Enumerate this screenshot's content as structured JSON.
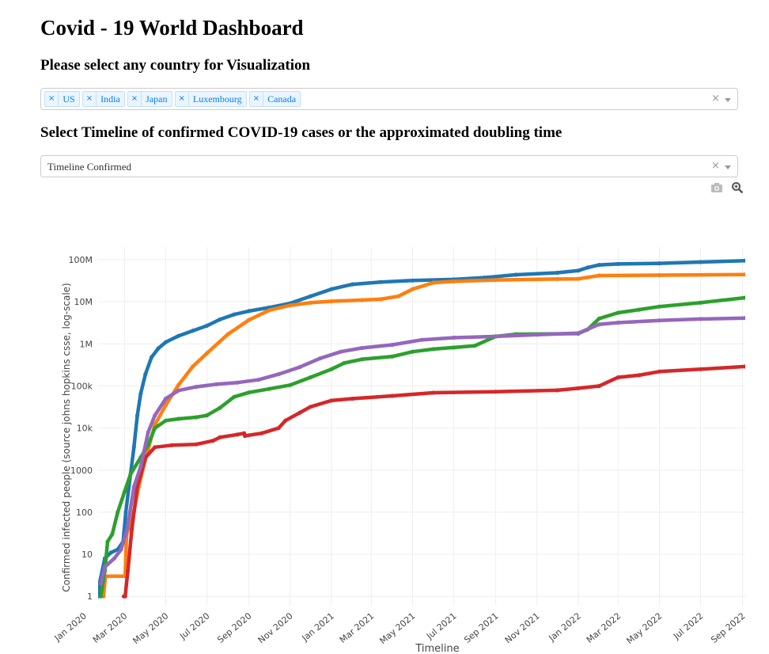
{
  "page": {
    "title": "Covid - 19 World Dashboard",
    "country_prompt": "Please select any country for Visualization",
    "timeline_prompt": "Select Timeline of confirmed COVID-19 cases or the approximated doubling time"
  },
  "country_dropdown": {
    "selected": [
      "US",
      "India",
      "Japan",
      "Luxembourg",
      "Canada"
    ],
    "remove_glyph": "×",
    "clear_glyph": "×"
  },
  "timeline_dropdown": {
    "value": "Timeline Confirmed",
    "clear_glyph": "×"
  },
  "modebar": {
    "icons": [
      "camera-icon",
      "zoom-icon"
    ]
  },
  "chart_data": {
    "type": "line",
    "xlabel": "Timeline",
    "ylabel": "Confirmed infected people (source johns hopkins csse, log-scale)",
    "y_scale": "log",
    "ylim": [
      0.6,
      200000000
    ],
    "xlim": [
      "2020-01-22",
      "2022-09-05"
    ],
    "x_ticks": [
      "Jan 2020",
      "Mar 2020",
      "May 2020",
      "Jul 2020",
      "Sep 2020",
      "Nov 2020",
      "Jan 2021",
      "Mar 2021",
      "May 2021",
      "Jul 2021",
      "Sep 2021",
      "Nov 2021",
      "Jan 2022",
      "Mar 2022",
      "May 2022",
      "Jul 2022",
      "Sep 2022"
    ],
    "y_ticks": [
      "1",
      "10",
      "100",
      "1000",
      "10k",
      "100k",
      "1M",
      "10M",
      "100M"
    ],
    "grid": true,
    "legend": "none",
    "colors": [
      "#1f77b4",
      "#ff7f0e",
      "#2ca02c",
      "#d62728",
      "#9467bd"
    ],
    "series": [
      {
        "points": [
          [
            "2020-01-22",
            1
          ],
          [
            "2020-01-24",
            2
          ],
          [
            "2020-02-01",
            8
          ],
          [
            "2020-02-10",
            11
          ],
          [
            "2020-02-20",
            13
          ],
          [
            "2020-02-28",
            20
          ],
          [
            "2020-03-03",
            100
          ],
          [
            "2020-03-10",
            800
          ],
          [
            "2020-03-15",
            3500
          ],
          [
            "2020-03-20",
            20000
          ],
          [
            "2020-03-25",
            65000
          ],
          [
            "2020-04-01",
            190000
          ],
          [
            "2020-04-10",
            480000
          ],
          [
            "2020-04-20",
            780000
          ],
          [
            "2020-05-01",
            1100000
          ],
          [
            "2020-05-20",
            1550000
          ],
          [
            "2020-06-10",
            2050000
          ],
          [
            "2020-07-01",
            2700000
          ],
          [
            "2020-07-20",
            3800000
          ],
          [
            "2020-08-10",
            5000000
          ],
          [
            "2020-09-01",
            6000000
          ],
          [
            "2020-10-01",
            7300000
          ],
          [
            "2020-11-01",
            9200000
          ],
          [
            "2020-12-01",
            13500000
          ],
          [
            "2021-01-01",
            20000000
          ],
          [
            "2021-02-01",
            26000000
          ],
          [
            "2021-03-15",
            29500000
          ],
          [
            "2021-05-01",
            32000000
          ],
          [
            "2021-07-01",
            34000000
          ],
          [
            "2021-08-15",
            37500000
          ],
          [
            "2021-10-01",
            44000000
          ],
          [
            "2021-12-01",
            49000000
          ],
          [
            "2022-01-01",
            55000000
          ],
          [
            "2022-01-15",
            65000000
          ],
          [
            "2022-02-01",
            75000000
          ],
          [
            "2022-03-01",
            79000000
          ],
          [
            "2022-05-01",
            82000000
          ],
          [
            "2022-07-01",
            88000000
          ],
          [
            "2022-09-05",
            95000000
          ]
        ]
      },
      {
        "points": [
          [
            "2020-01-30",
            1
          ],
          [
            "2020-02-02",
            3
          ],
          [
            "2020-03-02",
            3
          ],
          [
            "2020-03-04",
            28
          ],
          [
            "2020-03-15",
            107
          ],
          [
            "2020-03-22",
            400
          ],
          [
            "2020-04-01",
            1800
          ],
          [
            "2020-04-15",
            12000
          ],
          [
            "2020-05-01",
            35000
          ],
          [
            "2020-05-20",
            106000
          ],
          [
            "2020-06-10",
            290000
          ],
          [
            "2020-07-01",
            600000
          ],
          [
            "2020-08-01",
            1700000
          ],
          [
            "2020-09-01",
            3700000
          ],
          [
            "2020-10-01",
            6300000
          ],
          [
            "2020-11-01",
            8200000
          ],
          [
            "2020-12-01",
            9500000
          ],
          [
            "2021-01-01",
            10300000
          ],
          [
            "2021-02-15",
            11000000
          ],
          [
            "2021-03-15",
            11500000
          ],
          [
            "2021-04-10",
            13500000
          ],
          [
            "2021-05-01",
            20000000
          ],
          [
            "2021-06-01",
            28500000
          ],
          [
            "2021-07-01",
            30500000
          ],
          [
            "2021-09-01",
            33000000
          ],
          [
            "2021-12-01",
            34700000
          ],
          [
            "2022-01-01",
            35000000
          ],
          [
            "2022-01-15",
            38000000
          ],
          [
            "2022-02-01",
            42000000
          ],
          [
            "2022-05-01",
            43000000
          ],
          [
            "2022-09-05",
            44500000
          ]
        ]
      },
      {
        "points": [
          [
            "2020-01-26",
            1
          ],
          [
            "2020-02-01",
            4
          ],
          [
            "2020-02-05",
            20
          ],
          [
            "2020-02-12",
            30
          ],
          [
            "2020-02-20",
            100
          ],
          [
            "2020-03-01",
            300
          ],
          [
            "2020-03-10",
            800
          ],
          [
            "2020-03-25",
            2000
          ],
          [
            "2020-04-05",
            4000
          ],
          [
            "2020-04-15",
            10000
          ],
          [
            "2020-05-01",
            15000
          ],
          [
            "2020-05-20",
            16500
          ],
          [
            "2020-06-15",
            18000
          ],
          [
            "2020-07-01",
            20000
          ],
          [
            "2020-07-20",
            30000
          ],
          [
            "2020-08-10",
            55000
          ],
          [
            "2020-09-01",
            70000
          ],
          [
            "2020-10-01",
            85000
          ],
          [
            "2020-11-01",
            105000
          ],
          [
            "2020-12-01",
            160000
          ],
          [
            "2021-01-01",
            250000
          ],
          [
            "2021-01-20",
            350000
          ],
          [
            "2021-02-15",
            430000
          ],
          [
            "2021-04-01",
            500000
          ],
          [
            "2021-05-01",
            650000
          ],
          [
            "2021-06-01",
            750000
          ],
          [
            "2021-07-01",
            820000
          ],
          [
            "2021-08-01",
            900000
          ],
          [
            "2021-09-01",
            1500000
          ],
          [
            "2021-10-01",
            1700000
          ],
          [
            "2022-01-01",
            1750000
          ],
          [
            "2022-01-15",
            2200000
          ],
          [
            "2022-02-01",
            4000000
          ],
          [
            "2022-03-01",
            5500000
          ],
          [
            "2022-04-01",
            6500000
          ],
          [
            "2022-05-01",
            7700000
          ],
          [
            "2022-07-01",
            9500000
          ],
          [
            "2022-09-05",
            12500000
          ]
        ]
      },
      {
        "points": [
          [
            "2020-02-29",
            1
          ],
          [
            "2020-03-02",
            1
          ],
          [
            "2020-03-06",
            4
          ],
          [
            "2020-03-12",
            40
          ],
          [
            "2020-03-20",
            400
          ],
          [
            "2020-04-01",
            2000
          ],
          [
            "2020-04-15",
            3500
          ],
          [
            "2020-05-10",
            3900
          ],
          [
            "2020-06-15",
            4100
          ],
          [
            "2020-07-10",
            5000
          ],
          [
            "2020-07-20",
            6000
          ],
          [
            "2020-08-15",
            7000
          ],
          [
            "2020-08-25",
            7500
          ],
          [
            "2020-08-26",
            6500
          ],
          [
            "2020-09-20",
            7500
          ],
          [
            "2020-10-15",
            10000
          ],
          [
            "2020-10-25",
            15000
          ],
          [
            "2020-11-15",
            23000
          ],
          [
            "2020-12-01",
            32000
          ],
          [
            "2021-01-01",
            45000
          ],
          [
            "2021-02-01",
            50000
          ],
          [
            "2021-04-01",
            58000
          ],
          [
            "2021-06-01",
            69000
          ],
          [
            "2021-09-01",
            73000
          ],
          [
            "2021-12-01",
            79000
          ],
          [
            "2022-01-01",
            88000
          ],
          [
            "2022-02-01",
            100000
          ],
          [
            "2022-03-01",
            160000
          ],
          [
            "2022-04-01",
            180000
          ],
          [
            "2022-05-01",
            220000
          ],
          [
            "2022-07-01",
            250000
          ],
          [
            "2022-09-05",
            290000
          ]
        ]
      },
      {
        "points": [
          [
            "2020-01-26",
            2
          ],
          [
            "2020-02-01",
            5
          ],
          [
            "2020-02-15",
            8
          ],
          [
            "2020-02-25",
            13
          ],
          [
            "2020-03-05",
            40
          ],
          [
            "2020-03-15",
            400
          ],
          [
            "2020-03-25",
            1200
          ],
          [
            "2020-04-05",
            8000
          ],
          [
            "2020-04-15",
            20000
          ],
          [
            "2020-05-01",
            50000
          ],
          [
            "2020-05-20",
            78000
          ],
          [
            "2020-06-15",
            95000
          ],
          [
            "2020-07-15",
            110000
          ],
          [
            "2020-08-15",
            120000
          ],
          [
            "2020-09-15",
            140000
          ],
          [
            "2020-10-15",
            190000
          ],
          [
            "2020-11-15",
            280000
          ],
          [
            "2020-12-15",
            450000
          ],
          [
            "2021-01-15",
            650000
          ],
          [
            "2021-02-15",
            800000
          ],
          [
            "2021-04-01",
            950000
          ],
          [
            "2021-05-15",
            1250000
          ],
          [
            "2021-07-01",
            1400000
          ],
          [
            "2021-09-01",
            1500000
          ],
          [
            "2021-11-01",
            1650000
          ],
          [
            "2022-01-01",
            1800000
          ],
          [
            "2022-02-01",
            2900000
          ],
          [
            "2022-03-01",
            3200000
          ],
          [
            "2022-05-01",
            3600000
          ],
          [
            "2022-07-01",
            3900000
          ],
          [
            "2022-09-05",
            4100000
          ]
        ]
      }
    ]
  }
}
